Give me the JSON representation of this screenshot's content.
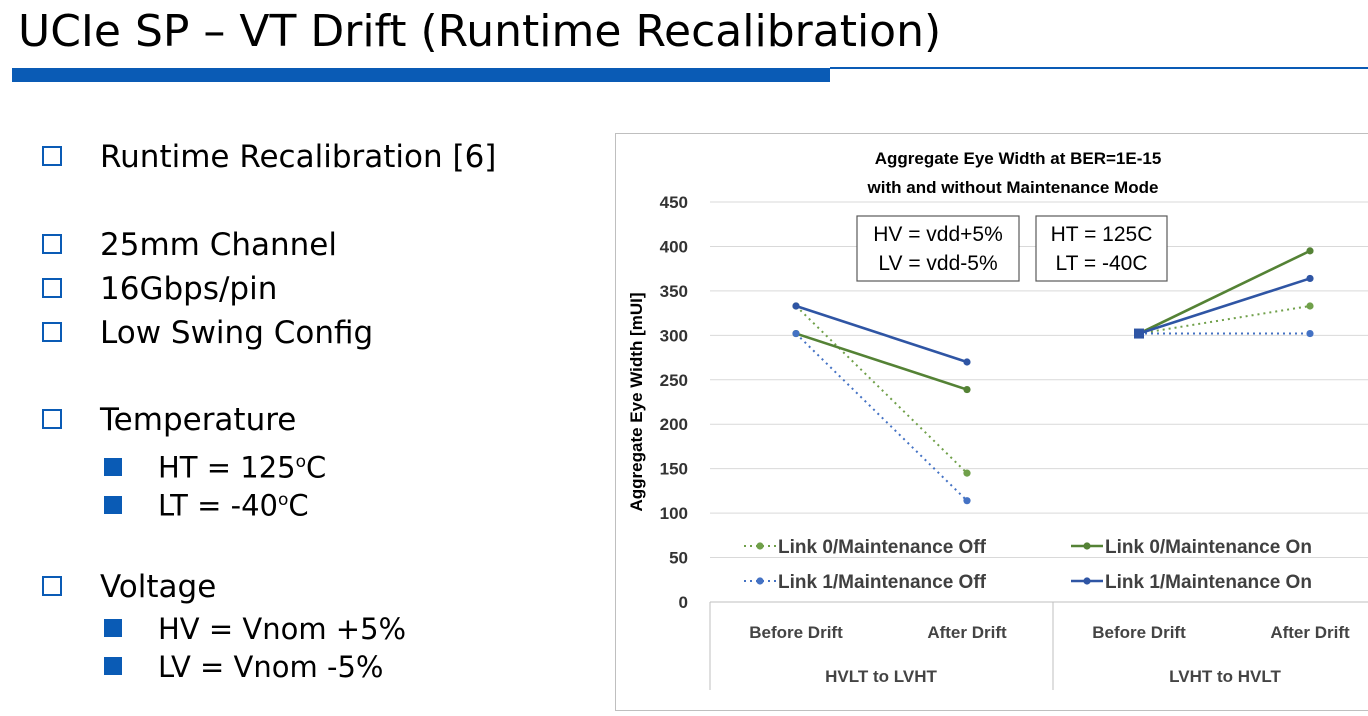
{
  "slide": {
    "title": "UCIe SP – VT Drift (Runtime Recalibration)",
    "accent_color": "#0a5bb5"
  },
  "bullets": {
    "runtime": "Runtime Recalibration [6]",
    "channel": "25mm Channel",
    "rate": "16Gbps/pin",
    "swing": "Low Swing Config",
    "temperature": "Temperature",
    "ht": "HT = 125",
    "lt": "LT = -40",
    "degree_sup": "o",
    "celsius": "C",
    "voltage": "Voltage",
    "hv": "HV = Vnom +5%",
    "lv": "LV = Vnom -5%"
  },
  "chart_data": {
    "type": "line",
    "title": "Aggregate Eye Width at BER=1E-15",
    "subtitle": "with and without Maintenance Mode",
    "ylabel": "Aggregate Eye Width [mUI]",
    "ylim": [
      0,
      450
    ],
    "yticks": [
      "0",
      "50",
      "100",
      "150",
      "200",
      "250",
      "300",
      "350",
      "400",
      "450"
    ],
    "grid": true,
    "categories": [
      "Before Drift",
      "After Drift",
      "Before Drift",
      "After Drift"
    ],
    "groups": [
      "HVLT to LVHT",
      "LVHT to HVLT"
    ],
    "annotations": [
      {
        "line1": "HV = vdd+5%",
        "line2": "LV = vdd-5%"
      },
      {
        "line1": "HT = 125C",
        "line2": "LT = -40C"
      }
    ],
    "series": [
      {
        "name": "Link 0/Maintenance Off",
        "color": "#70a04a",
        "style": "dotted",
        "values": [
          333,
          145,
          302,
          333
        ]
      },
      {
        "name": "Link 0/Maintenance On",
        "color": "#548235",
        "style": "solid",
        "values": [
          302,
          239,
          302,
          395
        ]
      },
      {
        "name": "Link 1/Maintenance Off",
        "color": "#4472c4",
        "style": "dotted",
        "values": [
          302,
          114,
          302,
          302
        ]
      },
      {
        "name": "Link 1/Maintenance On",
        "color": "#2f55a4",
        "style": "solid",
        "values": [
          333,
          270,
          302,
          364
        ]
      }
    ]
  }
}
